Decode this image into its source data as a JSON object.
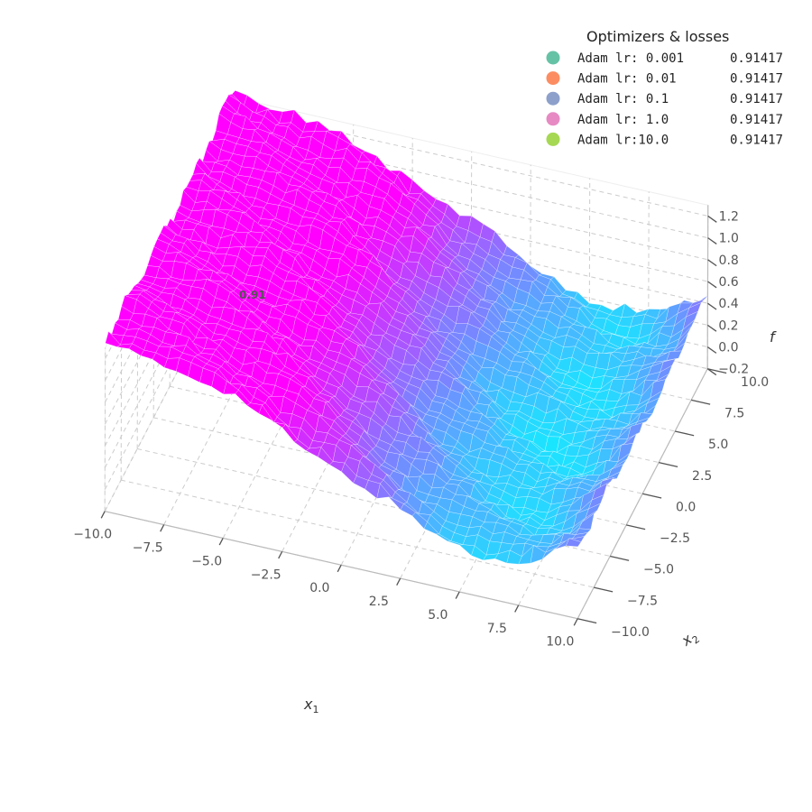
{
  "chart_data": {
    "type": "surface3d",
    "xlabel": "x",
    "xlabel_sub": "1",
    "ylabel": "x",
    "ylabel_sub": "2",
    "zlabel": "f",
    "xlim": [
      -10,
      10
    ],
    "ylim": [
      -10,
      10
    ],
    "zlim": [
      -0.2,
      1.3
    ],
    "x_ticks": [
      "−10.0",
      "−7.5",
      "−5.0",
      "−2.5",
      "0.0",
      "2.5",
      "5.0",
      "7.5",
      "10.0"
    ],
    "y_ticks": [
      "−10.0",
      "−7.5",
      "−5.0",
      "−2.5",
      "0.0",
      "2.5",
      "5.0",
      "7.5",
      "10.0"
    ],
    "z_ticks": [
      "−0.2",
      "0.0",
      "0.2",
      "0.4",
      "0.6",
      "0.8",
      "1.0",
      "1.2"
    ],
    "colormap": [
      "#ff00ff",
      "#00ffff"
    ],
    "grid": true,
    "annotation": {
      "text": "0.91",
      "x": -10,
      "y": 10,
      "z": 0.91
    },
    "legend": {
      "title": "Optimizers & losses",
      "position": "top-right",
      "entries": [
        {
          "label": "Adam lr: 0.001",
          "loss": "0.91417",
          "color": "#66c2a5"
        },
        {
          "label": "Adam lr: 0.01",
          "loss": "0.91417",
          "color": "#fc8d62"
        },
        {
          "label": "Adam lr: 0.1",
          "loss": "0.91417",
          "color": "#8da0cb"
        },
        {
          "label": "Adam lr: 1.0",
          "loss": "0.91417",
          "color": "#e78ac3"
        },
        {
          "label": "Adam lr:10.0",
          "loss": "0.91417",
          "color": "#a6d854"
        }
      ]
    }
  }
}
